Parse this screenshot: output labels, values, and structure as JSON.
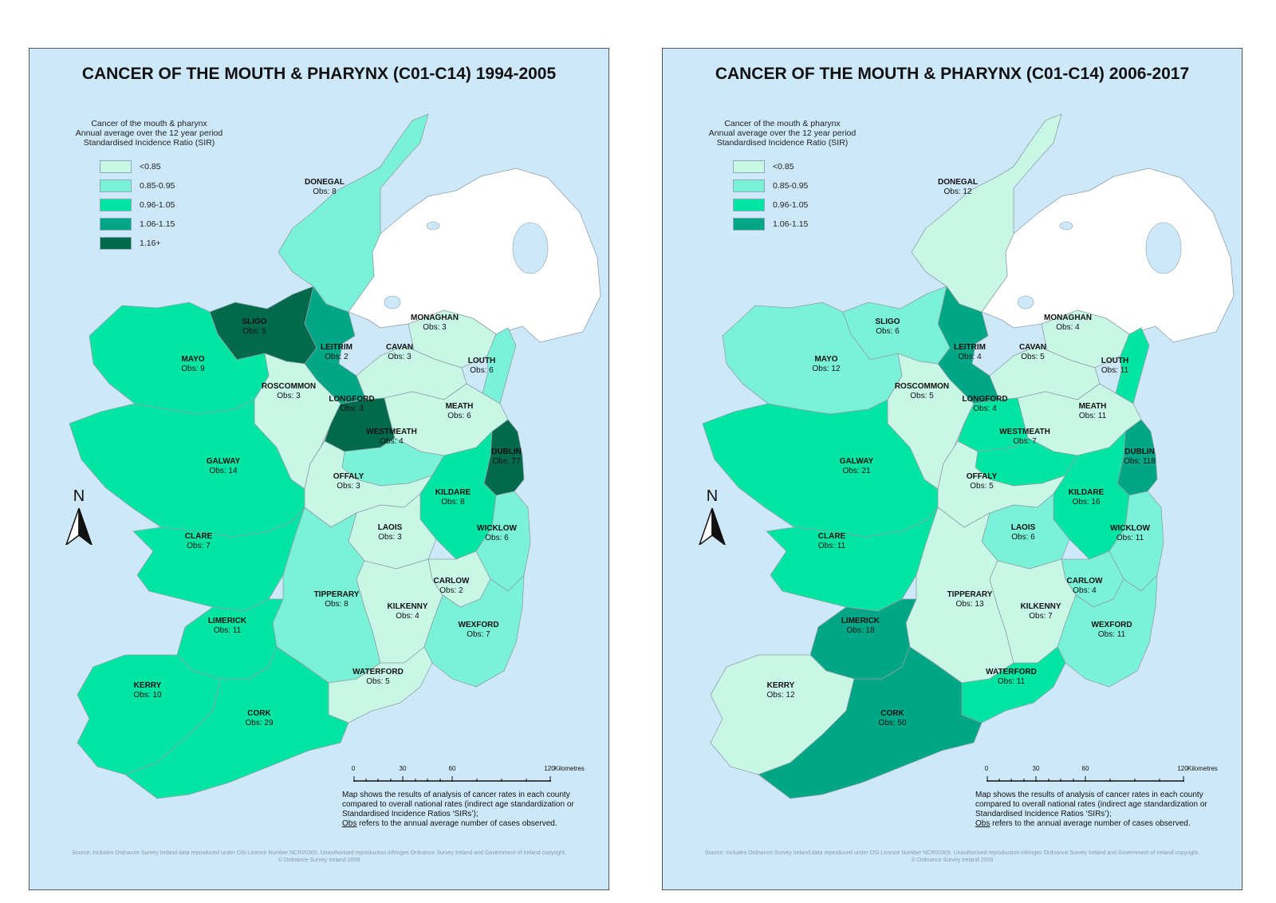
{
  "legend": {
    "title_lines": [
      "Cancer of the mouth & pharynx",
      "Annual average over the 12 year period",
      "Standardised Incidence Ratio (SIR)"
    ]
  },
  "colors": {
    "lt085": "#c9f7e6",
    "r085_095": "#79f2d7",
    "r096_105": "#00e5a2",
    "r106_115": "#00a786",
    "gt116": "#006a4a",
    "northern_ireland": "#ffffff",
    "sea": "#cde8f9"
  },
  "north_label": "N",
  "scale": {
    "ticks": [
      "0",
      "30",
      "60",
      "120"
    ],
    "unit": "Kilometres"
  },
  "note": {
    "text": "Map shows the results of analysis of cancer rates in each county compared to overall national rates (indirect age standardization or Standardised Incidence Ratios ‘SIRs’);",
    "obs_word": "Obs",
    "obs_text": " refers to the annual average number of cases observed."
  },
  "source": {
    "line1": "Source: Includes Ordnance Survey Ireland data reproduced under OSi Licence Number NCRI/0305. Unauthorised reproduction infringes Ordnance Survey Ireland and Government of Ireland copyright.",
    "line2": "© Ordnance Survey Ireland 2009"
  },
  "maps": [
    {
      "title": "CANCER OF THE MOUTH & PHARYNX (C01-C14) 1994-2005",
      "legend_items": [
        {
          "label": "<0.85",
          "color": "#c9f7e6"
        },
        {
          "label": "0.85-0.95",
          "color": "#79f2d7"
        },
        {
          "label": "0.96-1.05",
          "color": "#00e5a2"
        },
        {
          "label": "1.06-1.15",
          "color": "#00a786"
        },
        {
          "label": "1.16+",
          "color": "#006a4a"
        }
      ],
      "counties": {
        "donegal": {
          "name": "DONEGAL",
          "obs": "Obs: 8",
          "color": "#79f2d7"
        },
        "sligo": {
          "name": "SLIGO",
          "obs": "Obs: 5",
          "color": "#006a4a"
        },
        "mayo": {
          "name": "MAYO",
          "obs": "Obs: 9",
          "color": "#00e5a2"
        },
        "leitrim": {
          "name": "LEITRIM",
          "obs": "Obs: 2",
          "color": "#00a786"
        },
        "monaghan": {
          "name": "MONAGHAN",
          "obs": "Obs: 3",
          "color": "#c9f7e6"
        },
        "cavan": {
          "name": "CAVAN",
          "obs": "Obs: 3",
          "color": "#c9f7e6"
        },
        "louth": {
          "name": "LOUTH",
          "obs": "Obs: 6",
          "color": "#79f2d7"
        },
        "roscommon": {
          "name": "ROSCOMMON",
          "obs": "Obs: 3",
          "color": "#c9f7e6"
        },
        "longford": {
          "name": "LONGFORD",
          "obs": "Obs: 3",
          "color": "#006a4a"
        },
        "meath": {
          "name": "MEATH",
          "obs": "Obs: 6",
          "color": "#c9f7e6"
        },
        "westmeath": {
          "name": "WESTMEATH",
          "obs": "Obs: 4",
          "color": "#79f2d7"
        },
        "dublin": {
          "name": "DUBLIN",
          "obs": "Obs: 77",
          "color": "#006a4a"
        },
        "galway": {
          "name": "GALWAY",
          "obs": "Obs: 14",
          "color": "#00e5a2"
        },
        "offaly": {
          "name": "OFFALY",
          "obs": "Obs: 3",
          "color": "#c9f7e6"
        },
        "kildare": {
          "name": "KILDARE",
          "obs": "Obs: 8",
          "color": "#00e5a2"
        },
        "laois": {
          "name": "LAOIS",
          "obs": "Obs: 3",
          "color": "#c9f7e6"
        },
        "wicklow": {
          "name": "WICKLOW",
          "obs": "Obs: 6",
          "color": "#79f2d7"
        },
        "clare": {
          "name": "CLARE",
          "obs": "Obs: 7",
          "color": "#00e5a2"
        },
        "carlow": {
          "name": "CARLOW",
          "obs": "Obs: 2",
          "color": "#c9f7e6"
        },
        "tipperary": {
          "name": "TIPPERARY",
          "obs": "Obs: 8",
          "color": "#79f2d7"
        },
        "kilkenny": {
          "name": "KILKENNY",
          "obs": "Obs: 4",
          "color": "#c9f7e6"
        },
        "limerick": {
          "name": "LIMERICK",
          "obs": "Obs: 11",
          "color": "#00e5a2"
        },
        "wexford": {
          "name": "WEXFORD",
          "obs": "Obs: 7",
          "color": "#79f2d7"
        },
        "waterford": {
          "name": "WATERFORD",
          "obs": "Obs: 5",
          "color": "#c9f7e6"
        },
        "kerry": {
          "name": "KERRY",
          "obs": "Obs: 10",
          "color": "#00e5a2"
        },
        "cork": {
          "name": "CORK",
          "obs": "Obs: 29",
          "color": "#00e5a2"
        }
      }
    },
    {
      "title": "CANCER OF THE MOUTH & PHARYNX  (C01-C14) 2006-2017",
      "legend_items": [
        {
          "label": "<0.85",
          "color": "#c9f7e6"
        },
        {
          "label": "0.85-0.95",
          "color": "#79f2d7"
        },
        {
          "label": "0.96-1.05",
          "color": "#00e5a2"
        },
        {
          "label": "1.06-1.15",
          "color": "#00a786"
        }
      ],
      "counties": {
        "donegal": {
          "name": "DONEGAL",
          "obs": "Obs: 12",
          "color": "#c9f7e6"
        },
        "sligo": {
          "name": "SLIGO",
          "obs": "Obs: 6",
          "color": "#79f2d7"
        },
        "mayo": {
          "name": "MAYO",
          "obs": "Obs: 12",
          "color": "#79f2d7"
        },
        "leitrim": {
          "name": "LEITRIM",
          "obs": "Obs: 4",
          "color": "#00a786"
        },
        "monaghan": {
          "name": "MONAGHAN",
          "obs": "Obs: 4",
          "color": "#c9f7e6"
        },
        "cavan": {
          "name": "CAVAN",
          "obs": "Obs: 5",
          "color": "#c9f7e6"
        },
        "louth": {
          "name": "LOUTH",
          "obs": "Obs: 11",
          "color": "#00e5a2"
        },
        "roscommon": {
          "name": "ROSCOMMON",
          "obs": "Obs: 5",
          "color": "#c9f7e6"
        },
        "longford": {
          "name": "LONGFORD",
          "obs": "Obs: 4",
          "color": "#00e5a2"
        },
        "meath": {
          "name": "MEATH",
          "obs": "Obs: 11",
          "color": "#c9f7e6"
        },
        "westmeath": {
          "name": "WESTMEATH",
          "obs": "Obs: 7",
          "color": "#00e5a2"
        },
        "dublin": {
          "name": "DUBLIN",
          "obs": "Obs: 118",
          "color": "#00a786"
        },
        "galway": {
          "name": "GALWAY",
          "obs": "Obs: 21",
          "color": "#00e5a2"
        },
        "offaly": {
          "name": "OFFALY",
          "obs": "Obs: 5",
          "color": "#c9f7e6"
        },
        "kildare": {
          "name": "KILDARE",
          "obs": "Obs: 16",
          "color": "#00e5a2"
        },
        "laois": {
          "name": "LAOIS",
          "obs": "Obs: 6",
          "color": "#79f2d7"
        },
        "wicklow": {
          "name": "WICKLOW",
          "obs": "Obs: 11",
          "color": "#79f2d7"
        },
        "clare": {
          "name": "CLARE",
          "obs": "Obs: 11",
          "color": "#00e5a2"
        },
        "carlow": {
          "name": "CARLOW",
          "obs": "Obs: 4",
          "color": "#79f2d7"
        },
        "tipperary": {
          "name": "TIPPERARY",
          "obs": "Obs: 13",
          "color": "#c9f7e6"
        },
        "kilkenny": {
          "name": "KILKENNY",
          "obs": "Obs: 7",
          "color": "#c9f7e6"
        },
        "limerick": {
          "name": "LIMERICK",
          "obs": "Obs: 18",
          "color": "#00a786"
        },
        "wexford": {
          "name": "WEXFORD",
          "obs": "Obs: 11",
          "color": "#79f2d7"
        },
        "waterford": {
          "name": "WATERFORD",
          "obs": "Obs: 11",
          "color": "#00e5a2"
        },
        "kerry": {
          "name": "KERRY",
          "obs": "Obs: 12",
          "color": "#c9f7e6"
        },
        "cork": {
          "name": "CORK",
          "obs": "Obs: 50",
          "color": "#00a786"
        }
      }
    }
  ]
}
